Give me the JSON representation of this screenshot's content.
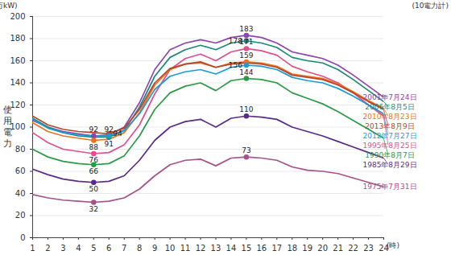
{
  "chart_data": {
    "type": "line",
    "ylabel": "使用電力",
    "yunit": "(百万kW)",
    "note": "(10電力計)",
    "xlabel": "(時)",
    "x": [
      1,
      2,
      3,
      4,
      5,
      6,
      7,
      8,
      9,
      10,
      11,
      12,
      13,
      14,
      15,
      16,
      17,
      18,
      19,
      20,
      21,
      22,
      23,
      24
    ],
    "xlim": [
      1,
      24
    ],
    "xticks": [
      1,
      2,
      3,
      4,
      5,
      6,
      7,
      8,
      9,
      10,
      11,
      12,
      13,
      14,
      15,
      16,
      17,
      18,
      19,
      20,
      21,
      22,
      23,
      24
    ],
    "ylim": [
      0,
      200
    ],
    "yticks": [
      0,
      20,
      40,
      60,
      80,
      100,
      120,
      140,
      160,
      180,
      200
    ],
    "grid": true,
    "marker": "circle",
    "line_style": "solid",
    "series": [
      {
        "name": "2001年7月24日",
        "color": "#8e44ad",
        "labeled_x": [
          5,
          15
        ],
        "values": [
          106,
          100,
          96,
          94,
          92,
          93,
          100,
          122,
          152,
          170,
          176,
          179,
          176,
          181,
          183,
          181,
          176,
          168,
          165,
          162,
          156,
          147,
          137,
          127
        ]
      },
      {
        "name": "2006年8月5日",
        "color": "#1a8a7a",
        "labeled_x": [
          6,
          15
        ],
        "values": [
          108,
          100,
          95,
          92,
          91,
          91,
          97,
          118,
          146,
          163,
          170,
          174,
          170,
          176,
          178,
          176,
          172,
          163,
          160,
          158,
          152,
          143,
          133,
          123
        ]
      },
      {
        "name": "1995年8月25日",
        "color": "#e0508a",
        "labeled_x": [
          5,
          15
        ],
        "values": [
          95,
          86,
          80,
          78,
          76,
          77,
          84,
          102,
          130,
          152,
          162,
          166,
          160,
          168,
          171,
          169,
          165,
          155,
          150,
          146,
          140,
          131,
          120,
          110
        ]
      },
      {
        "name": "2010年8月23日",
        "color": "#e8741e",
        "labeled_x": [
          5,
          15
        ],
        "values": [
          104,
          96,
          92,
          90,
          88,
          89,
          95,
          113,
          138,
          152,
          157,
          158,
          154,
          158,
          159,
          158,
          155,
          148,
          146,
          144,
          139,
          132,
          124,
          117
        ]
      },
      {
        "name": "2013年8月9日",
        "color": "#b5462a",
        "labeled_x": [
          6
        ],
        "values": [
          110,
          102,
          98,
          96,
          95,
          94,
          99,
          116,
          140,
          153,
          157,
          159,
          154,
          157,
          158,
          157,
          154,
          147,
          145,
          143,
          138,
          131,
          123,
          116
        ]
      },
      {
        "name": "2012年7月27日",
        "color": "#1e9bd7",
        "labeled_x": [
          6,
          15
        ],
        "values": [
          107,
          99,
          95,
          93,
          92,
          92,
          97,
          112,
          134,
          146,
          150,
          152,
          148,
          154,
          156,
          155,
          152,
          145,
          142,
          140,
          135,
          128,
          120,
          112
        ]
      },
      {
        "name": "1990年8月7日",
        "color": "#2a9a46",
        "labeled_x": [
          5,
          15
        ],
        "values": [
          80,
          73,
          69,
          67,
          66,
          67,
          74,
          92,
          116,
          131,
          137,
          140,
          133,
          142,
          144,
          143,
          140,
          131,
          126,
          121,
          114,
          106,
          98,
          90
        ]
      },
      {
        "name": "1985年8月29日",
        "color": "#5b2a86",
        "labeled_x": [
          5,
          15
        ],
        "values": [
          62,
          57,
          53,
          51,
          50,
          51,
          56,
          70,
          88,
          100,
          105,
          107,
          100,
          108,
          110,
          109,
          107,
          100,
          96,
          92,
          87,
          82,
          77,
          72
        ]
      },
      {
        "name": "1975年7月31日",
        "color": "#a6508c",
        "labeled_x": [
          5,
          15
        ],
        "values": [
          39,
          36,
          34,
          33,
          32,
          33,
          36,
          44,
          56,
          66,
          70,
          71,
          65,
          72,
          73,
          72,
          70,
          64,
          61,
          60,
          58,
          54,
          50,
          46
        ]
      }
    ]
  }
}
